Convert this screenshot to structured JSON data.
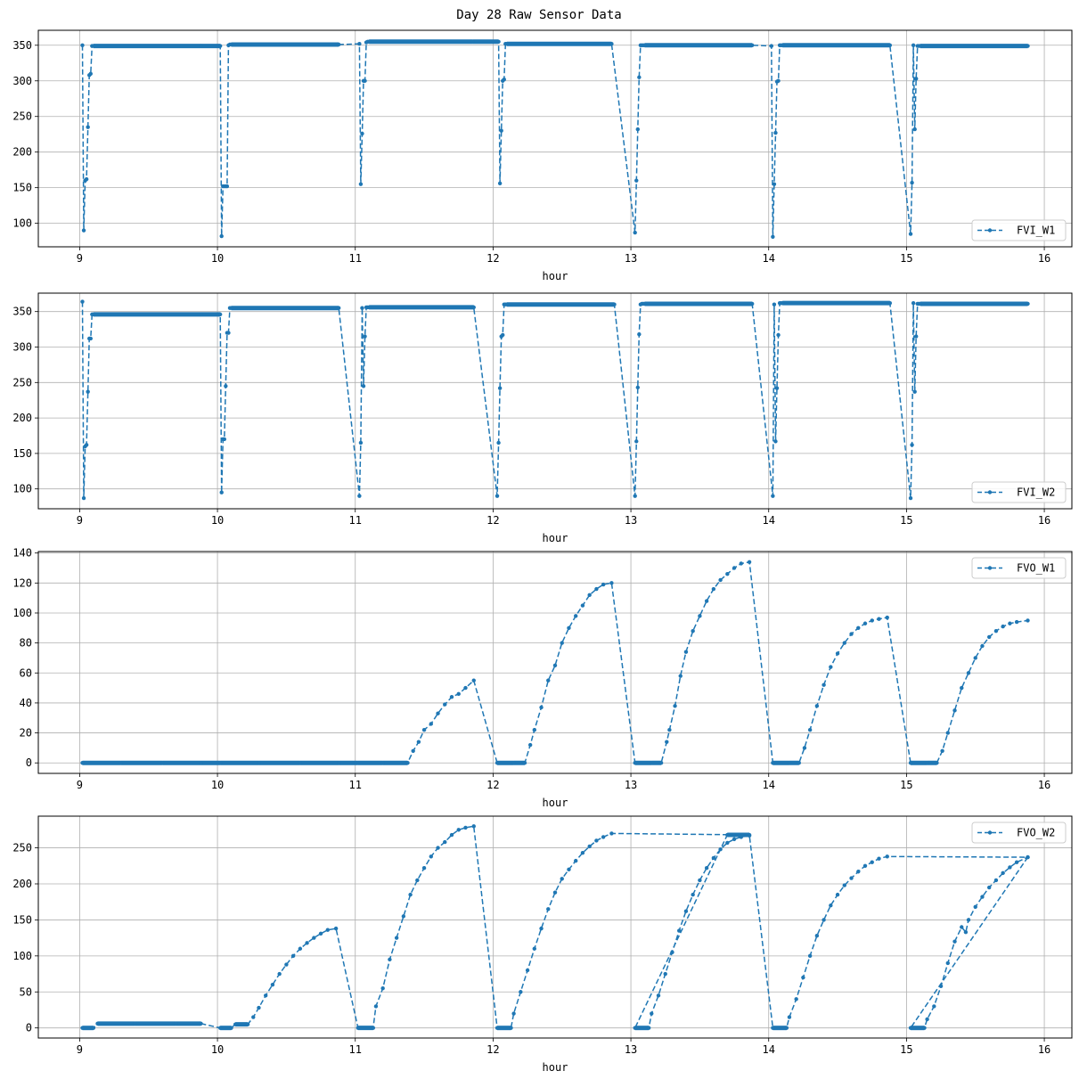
{
  "figure": {
    "title": "Day 28 Raw Sensor Data",
    "line_color": "#1f77b4",
    "grid_color": "#b0b0b0"
  },
  "chart_data": [
    {
      "type": "line",
      "title": "",
      "xlabel": "hour",
      "ylabel": "",
      "xlim": [
        8.7,
        16.2
      ],
      "ylim": [
        67,
        371
      ],
      "xticks": [
        9,
        10,
        11,
        12,
        13,
        14,
        15,
        16
      ],
      "yticks": [
        100,
        150,
        200,
        250,
        300,
        350
      ],
      "grid": true,
      "legend_position": "lower right",
      "series": [
        {
          "name": "FVI_W1",
          "x": [
            9.02,
            9.03,
            9.04,
            9.05,
            9.06,
            9.07,
            9.08,
            9.09,
            9.1,
            9.88,
            10.02,
            10.03,
            10.04,
            10.05,
            10.06,
            10.07,
            10.08,
            10.09,
            10.1,
            10.88,
            11.03,
            11.04,
            11.05,
            11.06,
            11.07,
            11.08,
            11.09,
            11.1,
            11.85,
            12.04,
            12.05,
            12.06,
            12.07,
            12.08,
            12.09,
            12.1,
            12.86,
            13.03,
            13.04,
            13.05,
            13.06,
            13.07,
            13.08,
            13.09,
            13.1,
            13.88,
            14.02,
            14.03,
            14.04,
            14.05,
            14.06,
            14.07,
            14.08,
            14.09,
            14.1,
            14.88,
            15.03,
            15.04,
            15.05,
            15.06,
            15.07,
            15.08,
            15.09,
            15.1,
            15.88
          ],
          "y": [
            350,
            90,
            160,
            162,
            235,
            308,
            310,
            349,
            349,
            349,
            349,
            82,
            152,
            152,
            152,
            152,
            350,
            351,
            351,
            351,
            352,
            155,
            226,
            300,
            300,
            354,
            355,
            355,
            355,
            355,
            156,
            230,
            300,
            302,
            352,
            352,
            352,
            87,
            160,
            232,
            305,
            350,
            350,
            350,
            350,
            350,
            349,
            81,
            155,
            227,
            299,
            300,
            350,
            350,
            350,
            350,
            85,
            157,
            350,
            232,
            303,
            349,
            349,
            349,
            349
          ]
        }
      ]
    },
    {
      "type": "line",
      "title": "",
      "xlabel": "hour",
      "ylabel": "",
      "xlim": [
        8.7,
        16.2
      ],
      "ylim": [
        72,
        376
      ],
      "xticks": [
        9,
        10,
        11,
        12,
        13,
        14,
        15,
        16
      ],
      "yticks": [
        100,
        150,
        200,
        250,
        300,
        350
      ],
      "grid": true,
      "legend_position": "lower right",
      "series": [
        {
          "name": "FVI_W2",
          "x": [
            9.02,
            9.03,
            9.04,
            9.05,
            9.06,
            9.07,
            9.08,
            9.09,
            9.1,
            9.88,
            10.02,
            10.03,
            10.04,
            10.05,
            10.06,
            10.07,
            10.08,
            10.09,
            10.1,
            10.88,
            11.03,
            11.04,
            11.05,
            11.06,
            11.07,
            11.08,
            11.09,
            11.1,
            11.86,
            12.03,
            12.04,
            12.05,
            12.06,
            12.07,
            12.08,
            12.09,
            12.1,
            12.88,
            13.03,
            13.04,
            13.05,
            13.06,
            13.07,
            13.08,
            13.09,
            13.1,
            13.88,
            14.03,
            14.04,
            14.05,
            14.06,
            14.07,
            14.08,
            14.09,
            14.1,
            14.88,
            15.03,
            15.04,
            15.05,
            15.06,
            15.07,
            15.08,
            15.09,
            15.1,
            15.88
          ],
          "y": [
            364,
            87,
            160,
            162,
            237,
            312,
            312,
            346,
            346,
            346,
            346,
            95,
            170,
            170,
            245,
            320,
            320,
            355,
            355,
            355,
            90,
            165,
            355,
            245,
            315,
            356,
            356,
            356,
            356,
            90,
            165,
            242,
            315,
            317,
            360,
            360,
            360,
            360,
            90,
            167,
            243,
            318,
            360,
            361,
            361,
            361,
            361,
            90,
            360,
            167,
            242,
            317,
            362,
            362,
            362,
            362,
            87,
            162,
            362,
            237,
            315,
            361,
            361,
            361,
            361
          ]
        }
      ]
    },
    {
      "type": "line",
      "title": "",
      "xlabel": "hour",
      "ylabel": "",
      "xlim": [
        8.7,
        16.2
      ],
      "ylim": [
        -7,
        141
      ],
      "xticks": [
        9,
        10,
        11,
        12,
        13,
        14,
        15,
        16
      ],
      "yticks": [
        0,
        20,
        40,
        60,
        80,
        100,
        120,
        140
      ],
      "grid": true,
      "legend_position": "upper right",
      "series": [
        {
          "name": "FVO_W1",
          "x": [
            9.02,
            9.3,
            9.6,
            9.88,
            10.02,
            10.3,
            10.6,
            10.88,
            11.02,
            11.2,
            11.38,
            11.42,
            11.46,
            11.5,
            11.55,
            11.6,
            11.65,
            11.7,
            11.75,
            11.8,
            11.86,
            12.03,
            12.15,
            12.23,
            12.27,
            12.3,
            12.35,
            12.4,
            12.45,
            12.5,
            12.55,
            12.6,
            12.65,
            12.7,
            12.75,
            12.8,
            12.86,
            13.03,
            13.15,
            13.22,
            13.26,
            13.28,
            13.32,
            13.36,
            13.4,
            13.45,
            13.5,
            13.55,
            13.6,
            13.65,
            13.7,
            13.75,
            13.8,
            13.86,
            14.03,
            14.15,
            14.22,
            14.26,
            14.3,
            14.35,
            14.4,
            14.45,
            14.5,
            14.55,
            14.6,
            14.65,
            14.7,
            14.75,
            14.8,
            14.86,
            15.03,
            15.15,
            15.22,
            15.26,
            15.3,
            15.35,
            15.4,
            15.45,
            15.5,
            15.55,
            15.6,
            15.65,
            15.7,
            15.75,
            15.8,
            15.88
          ],
          "y": [
            0,
            0,
            0,
            0,
            0,
            0,
            0,
            0,
            0,
            0,
            0,
            8,
            14,
            22,
            26,
            33,
            39,
            44,
            46,
            50,
            55,
            0,
            0,
            0,
            12,
            22,
            37,
            55,
            65,
            80,
            90,
            98,
            105,
            112,
            116,
            119,
            120,
            0,
            0,
            0,
            14,
            22,
            38,
            58,
            74,
            88,
            98,
            108,
            116,
            122,
            126,
            130,
            133,
            134,
            0,
            0,
            0,
            10,
            22,
            38,
            52,
            64,
            73,
            80,
            86,
            90,
            93,
            95,
            96,
            97,
            0,
            0,
            0,
            8,
            20,
            35,
            50,
            60,
            70,
            78,
            84,
            88,
            91,
            93,
            94,
            95
          ]
        }
      ]
    },
    {
      "type": "line",
      "title": "",
      "xlabel": "hour",
      "ylabel": "",
      "xlim": [
        8.7,
        16.2
      ],
      "ylim": [
        -14,
        294
      ],
      "xticks": [
        9,
        10,
        11,
        12,
        13,
        14,
        15,
        16
      ],
      "yticks": [
        0,
        50,
        100,
        150,
        200,
        250
      ],
      "grid": true,
      "legend_position": "upper right",
      "series": [
        {
          "name": "FVO_W2",
          "x": [
            9.02,
            9.1,
            9.13,
            9.4,
            9.7,
            9.88,
            10.02,
            10.1,
            10.13,
            10.22,
            10.26,
            10.3,
            10.35,
            10.4,
            10.45,
            10.5,
            10.55,
            10.6,
            10.65,
            10.7,
            10.75,
            10.8,
            10.86,
            11.02,
            11.13,
            11.15,
            11.2,
            11.25,
            11.3,
            11.35,
            11.4,
            11.45,
            11.5,
            11.55,
            11.6,
            11.65,
            11.7,
            11.75,
            11.8,
            11.86,
            12.03,
            12.13,
            12.15,
            12.2,
            12.25,
            12.3,
            12.35,
            12.4,
            12.45,
            12.5,
            12.55,
            12.6,
            12.65,
            12.7,
            12.75,
            12.8,
            12.86,
            13.86,
            13.7,
            13.03,
            13.13,
            13.15,
            13.2,
            13.25,
            13.3,
            13.35,
            13.4,
            13.45,
            13.5,
            13.55,
            13.6,
            13.65,
            13.7,
            13.75,
            13.8,
            13.86,
            14.03,
            14.13,
            14.15,
            14.2,
            14.25,
            14.3,
            14.35,
            14.4,
            14.45,
            14.5,
            14.55,
            14.6,
            14.65,
            14.7,
            14.75,
            14.8,
            14.86,
            15.88,
            15.03,
            15.13,
            15.15,
            15.2,
            15.25,
            15.3,
            15.35,
            15.4,
            15.43,
            15.45,
            15.5,
            15.55,
            15.6,
            15.65,
            15.7,
            15.75,
            15.8,
            15.88
          ],
          "y": [
            0,
            0,
            6,
            6,
            6,
            6,
            0,
            0,
            5,
            5,
            15,
            28,
            45,
            60,
            75,
            88,
            100,
            110,
            118,
            125,
            131,
            136,
            138,
            0,
            0,
            30,
            55,
            95,
            125,
            155,
            185,
            205,
            222,
            238,
            250,
            258,
            268,
            275,
            278,
            280,
            0,
            0,
            20,
            50,
            80,
            110,
            138,
            165,
            188,
            207,
            220,
            232,
            243,
            252,
            260,
            265,
            270,
            268,
            268,
            0,
            0,
            20,
            45,
            75,
            105,
            135,
            162,
            185,
            205,
            222,
            236,
            248,
            257,
            262,
            265,
            267,
            0,
            0,
            15,
            40,
            70,
            100,
            128,
            150,
            170,
            185,
            198,
            208,
            217,
            225,
            230,
            235,
            238,
            237,
            0,
            0,
            12,
            30,
            58,
            90,
            120,
            140,
            133,
            150,
            168,
            182,
            195,
            205,
            215,
            223,
            230,
            237
          ]
        }
      ]
    }
  ]
}
